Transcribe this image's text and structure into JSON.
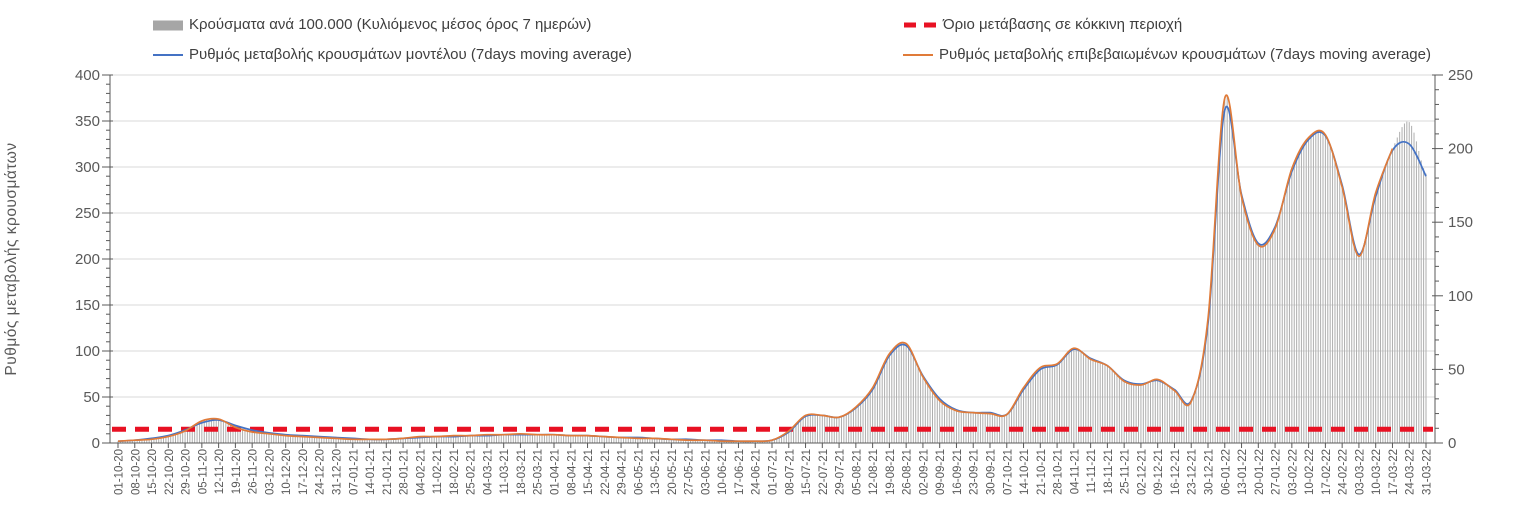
{
  "legend": {
    "items": [
      {
        "label": "Κρούσματα ανά 100.000 (Κυλιόμενος μέσος όρος 7 ημερών)",
        "swatch": "bar",
        "color": "#a6a6a6"
      },
      {
        "label": "Όριο μετάβασης σε κόκκινη περιοχή",
        "swatch": "dashed-line",
        "color": "#e81123"
      },
      {
        "label": "Ρυθμός μεταβολής κρουσμάτων μοντέλου (7days moving average)",
        "swatch": "line",
        "color": "#4472c4"
      },
      {
        "label": "Ρυθμός μεταβολής επιβεβαιωμένων κρουσμάτων (7days moving average)",
        "swatch": "line",
        "color": "#e07b39"
      }
    ]
  },
  "chart_data": {
    "type": "bar",
    "subtype": "combo bar + 2 smooth lines + dashed threshold",
    "left_axis": {
      "title": "Ρυθμός μεταβολής κρουσμάτων",
      "min": 0,
      "max": 400,
      "tick_step": 50,
      "minor_step": 10,
      "ticks": [
        0,
        50,
        100,
        150,
        200,
        250,
        300,
        350,
        400
      ]
    },
    "right_axis": {
      "min": 0,
      "max": 250,
      "tick_step": 50,
      "minor_step": 10,
      "ticks": [
        0,
        50,
        100,
        150,
        200,
        250
      ]
    },
    "grid": true,
    "legend_position": "top",
    "colors": {
      "grid": "#d9d9d9",
      "axis": "#595959",
      "tick_label": "#595959",
      "bar": "#aeaeae"
    },
    "x_labels_weekly": [
      "01-10-20",
      "08-10-20",
      "15-10-20",
      "22-10-20",
      "29-10-20",
      "05-11-20",
      "12-11-20",
      "19-11-20",
      "26-11-20",
      "03-12-20",
      "10-12-20",
      "17-12-20",
      "24-12-20",
      "31-12-20",
      "07-01-21",
      "14-01-21",
      "21-01-21",
      "28-01-21",
      "04-02-21",
      "11-02-21",
      "18-02-21",
      "25-02-21",
      "04-03-21",
      "11-03-21",
      "18-03-21",
      "25-03-21",
      "01-04-21",
      "08-04-21",
      "15-04-21",
      "22-04-21",
      "29-04-21",
      "06-05-21",
      "13-05-21",
      "20-05-21",
      "27-05-21",
      "03-06-21",
      "10-06-21",
      "17-06-21",
      "24-06-21",
      "01-07-21",
      "08-07-21",
      "15-07-21",
      "22-07-21",
      "29-07-21",
      "05-08-21",
      "12-08-21",
      "19-08-21",
      "26-08-21",
      "02-09-21",
      "09-09-21",
      "16-09-21",
      "23-09-21",
      "30-09-21",
      "07-10-21",
      "14-10-21",
      "21-10-21",
      "28-10-21",
      "04-11-21",
      "11-11-21",
      "18-11-21",
      "25-11-21",
      "02-12-21",
      "09-12-21",
      "16-12-21",
      "23-12-21",
      "30-12-21",
      "06-01-22",
      "13-01-22",
      "20-01-22",
      "27-01-22",
      "03-02-22",
      "10-02-22",
      "17-02-22",
      "24-02-22",
      "03-03-22",
      "10-03-22",
      "17-03-22",
      "24-03-22",
      "31-03-22"
    ],
    "threshold": {
      "name": "Όριο μετάβασης σε κόκκινη περιοχή",
      "axis": "left",
      "value": 15,
      "color": "#e81123",
      "style": "dashed"
    },
    "series": [
      {
        "name": "Κρούσματα ανά 100.000 (Κυλιόμενος μέσος όρος 7 ημερών)",
        "type": "bar",
        "axis": "right",
        "color": "#aeaeae",
        "bars_are_daily": true,
        "values": [
          1.2,
          1.8,
          2.5,
          4.5,
          8,
          15,
          16,
          11,
          7.5,
          6,
          5,
          4.5,
          3.8,
          3.2,
          2.6,
          2.5,
          2.5,
          3.1,
          4.2,
          4.5,
          4.8,
          5,
          5.5,
          5.8,
          6,
          5.8,
          5.5,
          5.2,
          4.8,
          4.4,
          3.8,
          3.4,
          3,
          2.5,
          2.1,
          1.8,
          1.5,
          1.3,
          1.3,
          1.9,
          8,
          19,
          19,
          17.5,
          24.5,
          37.5,
          60,
          67,
          45,
          29,
          22,
          20.5,
          20,
          20,
          37,
          51,
          54,
          64,
          57,
          52,
          42,
          40,
          43,
          36,
          28,
          85,
          234,
          168,
          135,
          146,
          186,
          207,
          209,
          174,
          127,
          170,
          200,
          218,
          183
        ]
      },
      {
        "name": "Ρυθμός μεταβολής κρουσμάτων μοντέλου (7days moving average)",
        "type": "line",
        "axis": "left",
        "color": "#4472c4",
        "values": [
          2,
          3,
          5,
          8,
          14,
          22,
          25,
          19,
          14,
          11,
          9,
          8,
          7,
          6,
          5,
          4,
          4,
          5,
          6,
          7,
          7,
          8,
          8,
          9,
          9,
          9,
          9,
          8,
          8,
          7,
          6,
          6,
          5,
          4,
          4,
          3,
          3,
          2,
          2,
          3,
          12,
          29,
          30,
          28,
          38,
          58,
          95,
          106,
          73,
          48,
          36,
          33,
          33,
          31,
          58,
          80,
          85,
          102,
          92,
          84,
          68,
          64,
          68,
          58,
          46,
          130,
          362,
          270,
          217,
          235,
          295,
          330,
          334,
          280,
          205,
          268,
          318,
          325,
          290
        ]
      },
      {
        "name": "Ρυθμός μεταβολής επιβεβαιωμένων κρουσμάτων (7days moving average)",
        "type": "line",
        "axis": "left",
        "color": "#e07b39",
        "values": [
          2,
          3,
          4,
          7,
          13,
          24,
          26,
          17,
          12,
          10,
          8,
          7,
          6,
          5,
          4,
          4,
          4,
          5,
          7,
          7,
          8,
          8,
          9,
          9,
          10,
          9,
          9,
          8,
          8,
          7,
          6,
          5,
          5,
          4,
          3,
          3,
          2,
          2,
          2,
          3,
          13,
          30,
          30,
          28,
          39,
          60,
          97,
          108,
          72,
          46,
          35,
          33,
          32,
          31,
          60,
          82,
          86,
          103,
          91,
          84,
          67,
          63,
          69,
          57,
          45,
          135,
          375,
          268,
          215,
          233,
          298,
          332,
          335,
          278,
          203,
          272,
          320,
          null,
          null
        ]
      }
    ]
  }
}
